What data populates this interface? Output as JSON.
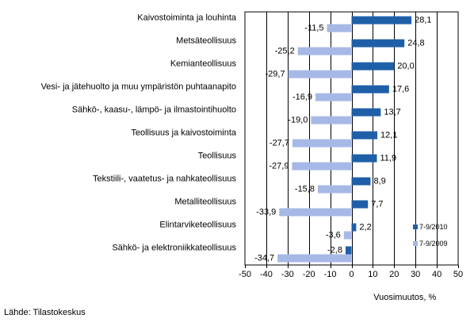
{
  "chart_data": {
    "type": "bar",
    "orientation": "horizontal",
    "categories": [
      "Kaivostoiminta ja louhinta",
      "Metsäteollisuus",
      "Kemianteollisuus",
      "Vesi- ja jätehuolto ja muu ympäristön puhtaanapito",
      "Sähkö-, kaasu-, lämpö- ja ilmastointihuolto",
      "Teollisuus ja kaivostoiminta",
      "Teollisuus",
      "Tekstiili-, vaatetus- ja nahkateollisuus",
      "Metalliteollisuus",
      "Elintarviketeollisuus",
      "Sähkö- ja elektroniikkateollisuus"
    ],
    "series": [
      {
        "name": "7-9/2010",
        "color": "#1f5fa8",
        "values": [
          28.1,
          24.8,
          20.0,
          17.6,
          13.7,
          12.1,
          11.9,
          8.9,
          7.7,
          2.2,
          -2.8
        ],
        "labels": [
          "28,1",
          "24,8",
          "20,0",
          "17,6",
          "13,7",
          "12,1",
          "11,9",
          "8,9",
          "7,7",
          "2,2",
          "-2,8"
        ]
      },
      {
        "name": "7-9/2009",
        "color": "#a6b8e6",
        "values": [
          -11.5,
          -25.2,
          -29.7,
          -16.9,
          -19.0,
          -27.7,
          -27.9,
          -15.8,
          -33.9,
          -3.6,
          -34.7
        ],
        "labels": [
          "-11,5",
          "-25,2",
          "-29,7",
          "-16,9",
          "-19,0",
          "-27,7",
          "-27,9",
          "-15,8",
          "-33,9",
          "-3,6",
          "-34,7"
        ]
      }
    ],
    "xlim": [
      -50,
      50
    ],
    "xticks": [
      -50,
      -40,
      -30,
      -20,
      -10,
      0,
      10,
      20,
      30,
      40,
      50
    ],
    "xtick_labels": [
      "-50",
      "-40",
      "-30",
      "-20",
      "-10",
      "0",
      "10",
      "20",
      "30",
      "40",
      "50"
    ],
    "xlabel": "Vuosimuutos, %",
    "grid": "vertical",
    "legend_position": "inside bottom-right"
  },
  "source": "Lähde: Tilastokeskus"
}
